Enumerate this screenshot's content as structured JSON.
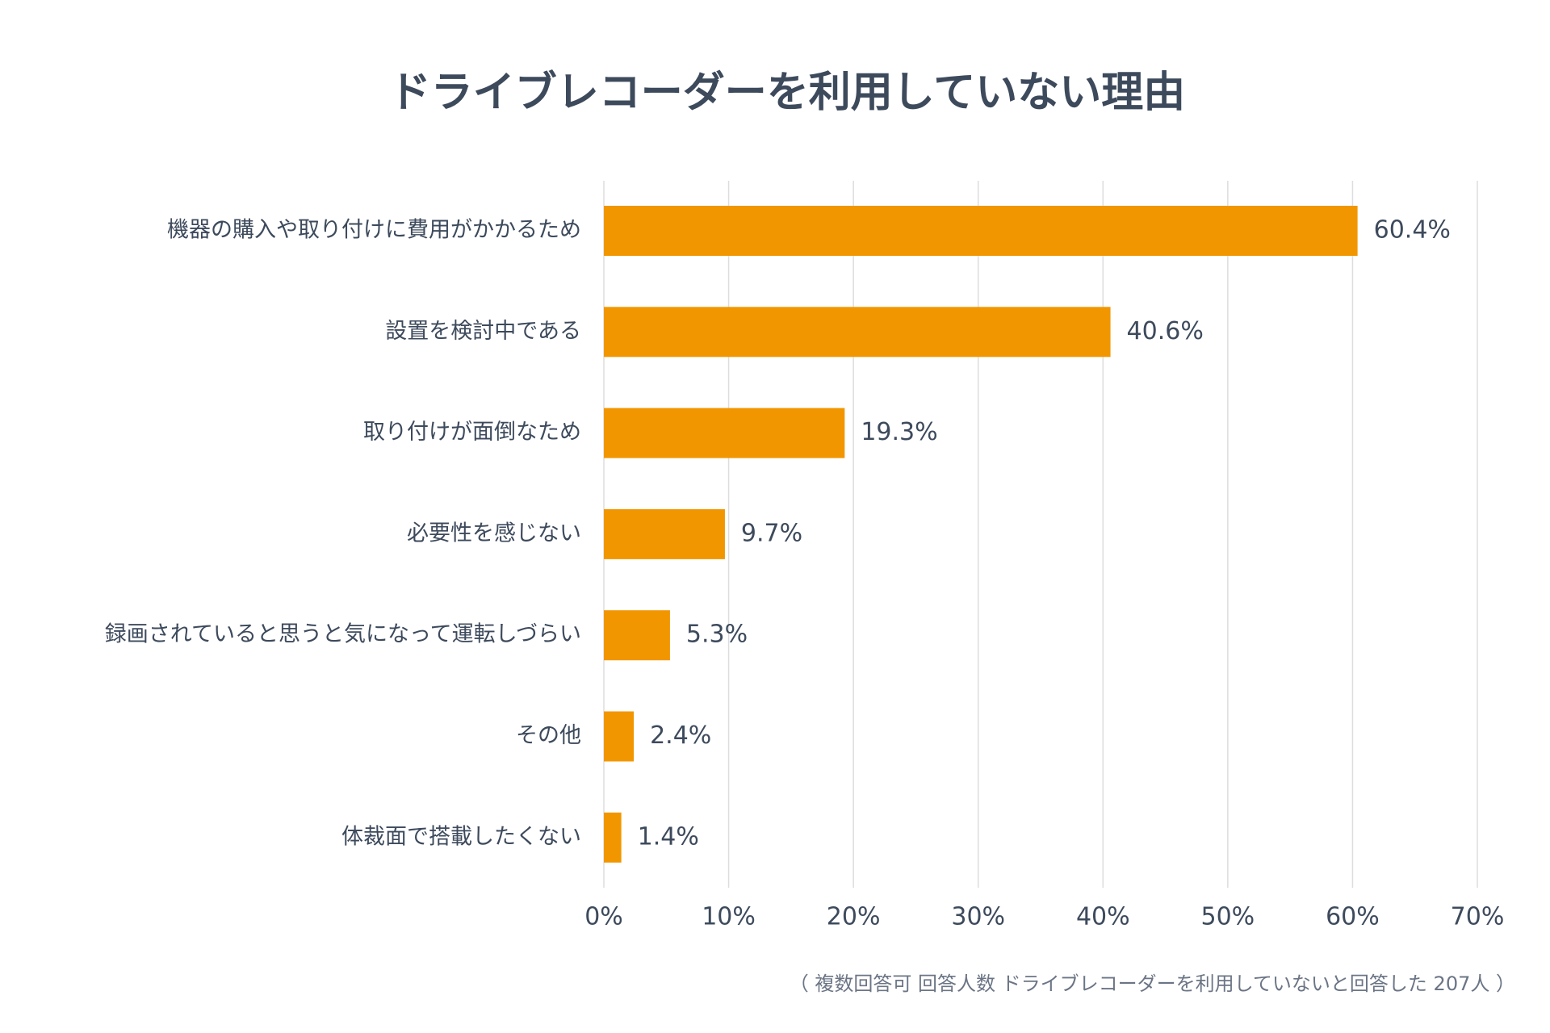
{
  "chart_data": {
    "type": "hbar",
    "title": "ドライブレコーダーを利用していない理由",
    "categories": [
      "機器の購入や取り付けに費用がかかるため",
      "設置を検討中である",
      "取り付けが面倒なため",
      "必要性を感じない",
      "録画されていると思うと気になって運転しづらい",
      "その他",
      "体裁面で搭載したくない"
    ],
    "values": [
      60.4,
      40.6,
      19.3,
      9.7,
      5.3,
      2.4,
      1.4
    ],
    "value_labels": [
      "60.4%",
      "40.6%",
      "19.3%",
      "9.7%",
      "5.3%",
      "2.4%",
      "1.4%"
    ],
    "color": "#f29600",
    "xlim": [
      0,
      70
    ],
    "xticks": [
      {
        "value": 0,
        "label": "0%"
      },
      {
        "value": 10,
        "label": "10%"
      },
      {
        "value": 20,
        "label": "20%"
      },
      {
        "value": 30,
        "label": "30%"
      },
      {
        "value": 40,
        "label": "40%"
      },
      {
        "value": 50,
        "label": "50%"
      },
      {
        "value": 60,
        "label": "60%"
      },
      {
        "value": 70,
        "label": "70%"
      }
    ],
    "grid": true,
    "note": "（ 複数回答可 回答人数 ドライブレコーダーを利用していないと回答した 207人 ）"
  }
}
